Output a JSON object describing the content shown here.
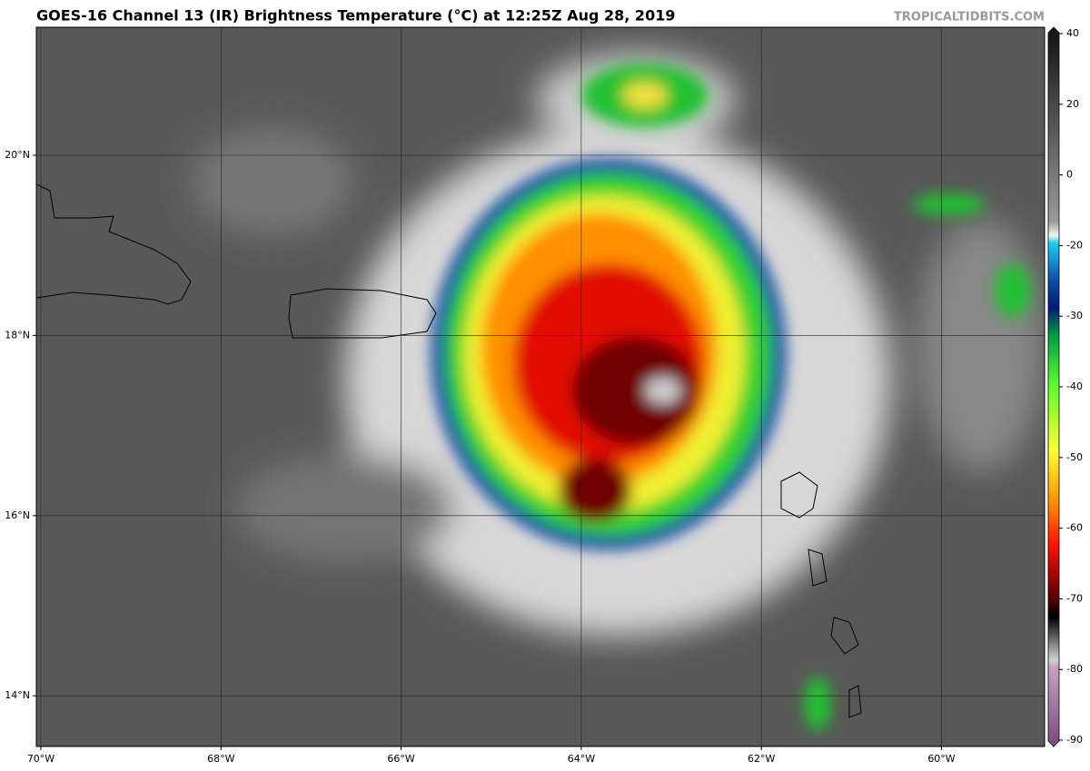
{
  "header": {
    "title": "GOES-16 Channel 13 (IR) Brightness Temperature (°C) at 12:25Z Aug 28, 2019",
    "site": "TROPICALTIDBITS.COM"
  },
  "map": {
    "lat_labels": [
      "20°N",
      "18°N",
      "16°N",
      "14°N"
    ],
    "lon_labels": [
      "70°W",
      "68°W",
      "66°W",
      "64°W",
      "62°W",
      "60°W"
    ]
  },
  "colorbar": {
    "ticks": [
      40,
      20,
      0,
      -20,
      -30,
      -40,
      -50,
      -60,
      -70,
      -80,
      -90
    ]
  }
}
